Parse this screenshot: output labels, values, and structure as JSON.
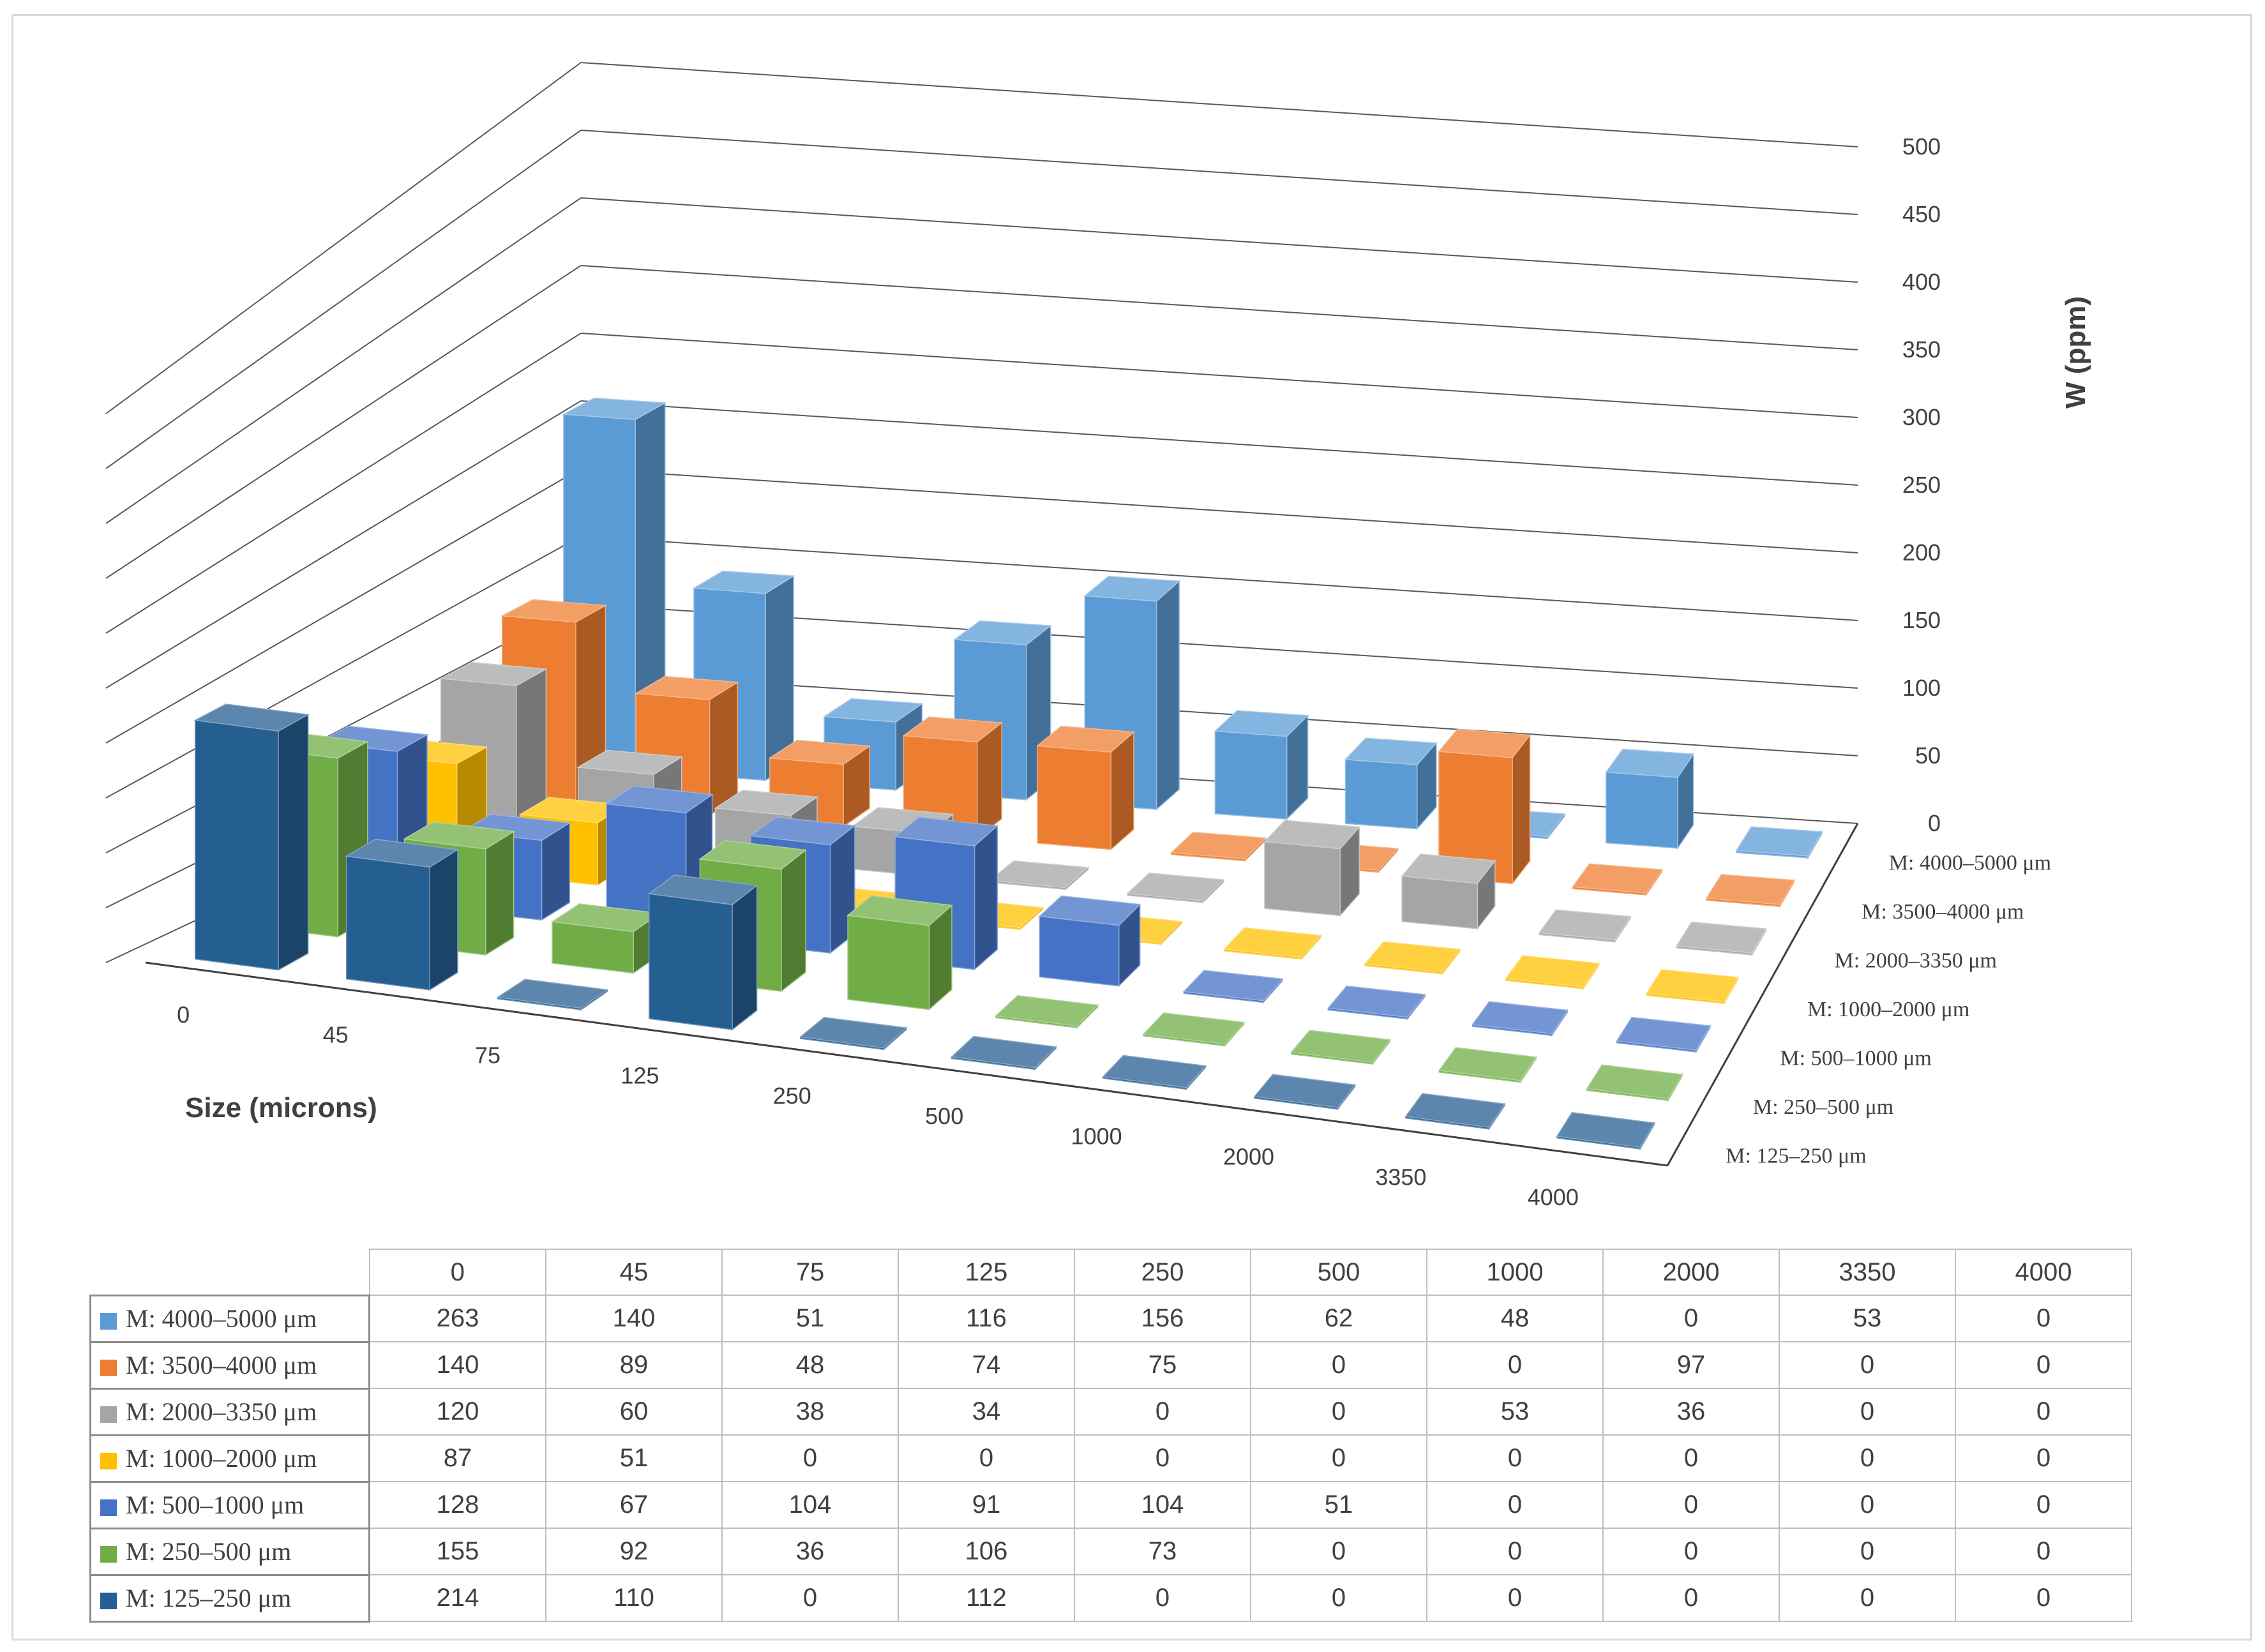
{
  "chart_data": {
    "type": "bar",
    "subtype": "3d-column",
    "ylabel": "W (ppm)",
    "xlabel": "Size (microns)",
    "ylim": [
      0,
      500
    ],
    "yticks": [
      0,
      50,
      100,
      150,
      200,
      250,
      300,
      350,
      400,
      450,
      500
    ],
    "categories": [
      "0",
      "45",
      "75",
      "125",
      "250",
      "500",
      "1000",
      "2000",
      "3350",
      "4000"
    ],
    "series": [
      {
        "name": "M: 4000–5000 μm",
        "color": "#5B9BD5",
        "values": [
          263,
          140,
          51,
          116,
          156,
          62,
          48,
          0,
          53,
          0
        ]
      },
      {
        "name": "M: 3500–4000 μm",
        "color": "#ED7D31",
        "values": [
          140,
          89,
          48,
          74,
          75,
          0,
          0,
          97,
          0,
          0
        ]
      },
      {
        "name": "M: 2000–3350 μm",
        "color": "#A5A5A5",
        "values": [
          120,
          60,
          38,
          34,
          0,
          0,
          53,
          36,
          0,
          0
        ]
      },
      {
        "name": "M: 1000–2000 μm",
        "color": "#FFC000",
        "values": [
          87,
          51,
          0,
          0,
          0,
          0,
          0,
          0,
          0,
          0
        ]
      },
      {
        "name": "M: 500–1000 μm",
        "color": "#4472C4",
        "values": [
          128,
          67,
          104,
          91,
          104,
          51,
          0,
          0,
          0,
          0
        ]
      },
      {
        "name": "M: 250–500 μm",
        "color": "#70AD47",
        "values": [
          155,
          92,
          36,
          106,
          73,
          0,
          0,
          0,
          0,
          0
        ]
      },
      {
        "name": "M: 125–250 μm",
        "color": "#255E91",
        "values": [
          214,
          110,
          0,
          112,
          0,
          0,
          0,
          0,
          0,
          0
        ]
      }
    ],
    "grid": true,
    "legend": "data-table"
  }
}
